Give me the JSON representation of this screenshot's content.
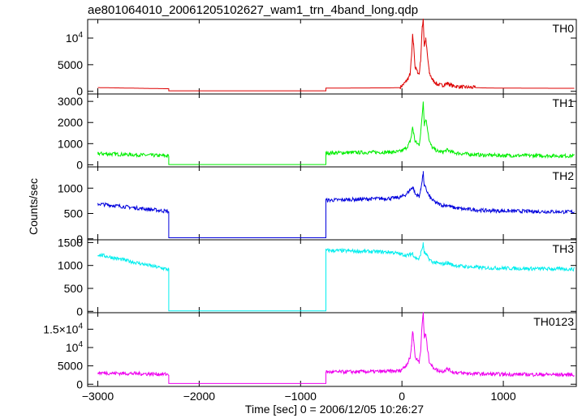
{
  "title": "ae801064010_20061205102627_wam1_trn_4band_long.qdp",
  "ylabel": "Counts/sec",
  "xlabel": "Time [sec] 0 = 2006/12/05 10:26:27",
  "chart_data": [
    {
      "type": "line",
      "panel": "TH0",
      "color": "#dd0000",
      "xlim": [
        -3100,
        1720
      ],
      "ylim": [
        -500,
        13500
      ],
      "yticks": [
        {
          "v": 0,
          "label": "0"
        },
        {
          "v": 5000,
          "label": "5000"
        },
        {
          "v": 10000,
          "label": "10",
          "sup": "4"
        }
      ],
      "x": [
        -3000,
        -2300,
        -2300,
        -750,
        -750,
        -100,
        -20,
        30,
        60,
        80,
        95,
        105,
        115,
        130,
        150,
        170,
        185,
        200,
        210,
        220,
        235,
        250,
        270,
        300,
        350,
        400,
        450,
        500,
        600,
        800,
        1000,
        1300,
        1700
      ],
      "y": [
        700,
        480,
        100,
        100,
        600,
        650,
        700,
        1600,
        2400,
        3200,
        6500,
        10500,
        8800,
        4500,
        3800,
        3200,
        6000,
        12000,
        13700,
        8500,
        9800,
        7000,
        3500,
        2200,
        1300,
        1100,
        1500,
        1000,
        800,
        640,
        600,
        580,
        560
      ]
    },
    {
      "type": "line",
      "panel": "TH1",
      "color": "#00ee00",
      "xlim": [
        -3100,
        1720
      ],
      "ylim": [
        -100,
        3350
      ],
      "yticks": [
        {
          "v": 0,
          "label": "0"
        },
        {
          "v": 1000,
          "label": "1000"
        },
        {
          "v": 2000,
          "label": "2000"
        },
        {
          "v": 3000,
          "label": "3000"
        }
      ],
      "x": [
        -3000,
        -2300,
        -2300,
        -750,
        -750,
        -100,
        -20,
        30,
        60,
        80,
        95,
        105,
        115,
        130,
        150,
        170,
        185,
        200,
        210,
        220,
        235,
        250,
        270,
        300,
        350,
        400,
        450,
        500,
        600,
        800,
        1000,
        1300,
        1700
      ],
      "y": [
        530,
        420,
        10,
        10,
        560,
        600,
        620,
        750,
        900,
        1100,
        1400,
        1800,
        1500,
        1100,
        1000,
        950,
        1500,
        2400,
        3050,
        1900,
        2150,
        1800,
        1100,
        800,
        650,
        600,
        700,
        580,
        520,
        460,
        440,
        430,
        420
      ]
    },
    {
      "type": "line",
      "panel": "TH2",
      "color": "#0000dd",
      "xlim": [
        -3100,
        1720
      ],
      "ylim": [
        -20,
        1420
      ],
      "yticks": [
        {
          "v": 0,
          "label": "0"
        },
        {
          "v": 500,
          "label": "500"
        },
        {
          "v": 1000,
          "label": "1000"
        }
      ],
      "x": [
        -3000,
        -2300,
        -2300,
        -750,
        -750,
        -100,
        -20,
        30,
        60,
        80,
        95,
        105,
        115,
        130,
        150,
        170,
        185,
        200,
        210,
        220,
        235,
        250,
        270,
        300,
        350,
        400,
        450,
        500,
        600,
        800,
        1000,
        1300,
        1700
      ],
      "y": [
        690,
        540,
        20,
        20,
        760,
        800,
        820,
        860,
        920,
        960,
        1000,
        1020,
        990,
        880,
        860,
        840,
        960,
        1180,
        1300,
        1050,
        1000,
        920,
        840,
        760,
        700,
        660,
        660,
        620,
        590,
        560,
        550,
        540,
        530
      ]
    },
    {
      "type": "line",
      "panel": "TH3",
      "color": "#00eeee",
      "xlim": [
        -3100,
        1720
      ],
      "ylim": [
        -30,
        1560
      ],
      "yticks": [
        {
          "v": 0,
          "label": "0"
        },
        {
          "v": 500,
          "label": "500"
        },
        {
          "v": 1000,
          "label": "1000"
        },
        {
          "v": 1500,
          "label": "1500"
        }
      ],
      "x": [
        -3000,
        -2300,
        -2300,
        -750,
        -750,
        -100,
        -20,
        30,
        60,
        80,
        95,
        105,
        115,
        130,
        150,
        170,
        185,
        200,
        210,
        220,
        235,
        250,
        270,
        300,
        350,
        400,
        450,
        500,
        600,
        800,
        1000,
        1300,
        1700
      ],
      "y": [
        1240,
        910,
        10,
        10,
        1330,
        1290,
        1250,
        1230,
        1220,
        1240,
        1250,
        1270,
        1220,
        1170,
        1150,
        1140,
        1260,
        1380,
        1470,
        1280,
        1250,
        1200,
        1130,
        1080,
        1050,
        1030,
        1060,
        1010,
        980,
        950,
        940,
        930,
        920
      ]
    },
    {
      "type": "line",
      "panel": "TH0123",
      "color": "#ee00ee",
      "xlim": [
        -3100,
        1720
      ],
      "ylim": [
        -600,
        19500
      ],
      "yticks": [
        {
          "v": 0,
          "label": "0"
        },
        {
          "v": 5000,
          "label": "5000"
        },
        {
          "v": 10000,
          "label": "10",
          "sup": "4"
        },
        {
          "v": 15000,
          "label": "1.5×10",
          "sup": "4"
        }
      ],
      "x": [
        -3000,
        -2300,
        -2300,
        -750,
        -750,
        -100,
        -20,
        30,
        60,
        80,
        95,
        105,
        115,
        130,
        150,
        170,
        185,
        200,
        210,
        220,
        235,
        250,
        270,
        300,
        350,
        400,
        450,
        500,
        600,
        800,
        1000,
        1300,
        1700
      ],
      "y": [
        3100,
        2700,
        200,
        200,
        3300,
        3500,
        3700,
        4800,
        6000,
        7200,
        10500,
        14800,
        12200,
        7500,
        6700,
        6000,
        9500,
        16500,
        19500,
        12800,
        13600,
        10000,
        6200,
        4800,
        3800,
        3500,
        4200,
        3300,
        3000,
        2800,
        2700,
        2650,
        2600
      ]
    }
  ],
  "x_axis": {
    "ticks": [
      {
        "v": -3000,
        "label": "−3000"
      },
      {
        "v": -2000,
        "label": "−2000"
      },
      {
        "v": -1000,
        "label": "−1000"
      },
      {
        "v": 0,
        "label": "0"
      },
      {
        "v": 1000,
        "label": "1000"
      }
    ]
  }
}
